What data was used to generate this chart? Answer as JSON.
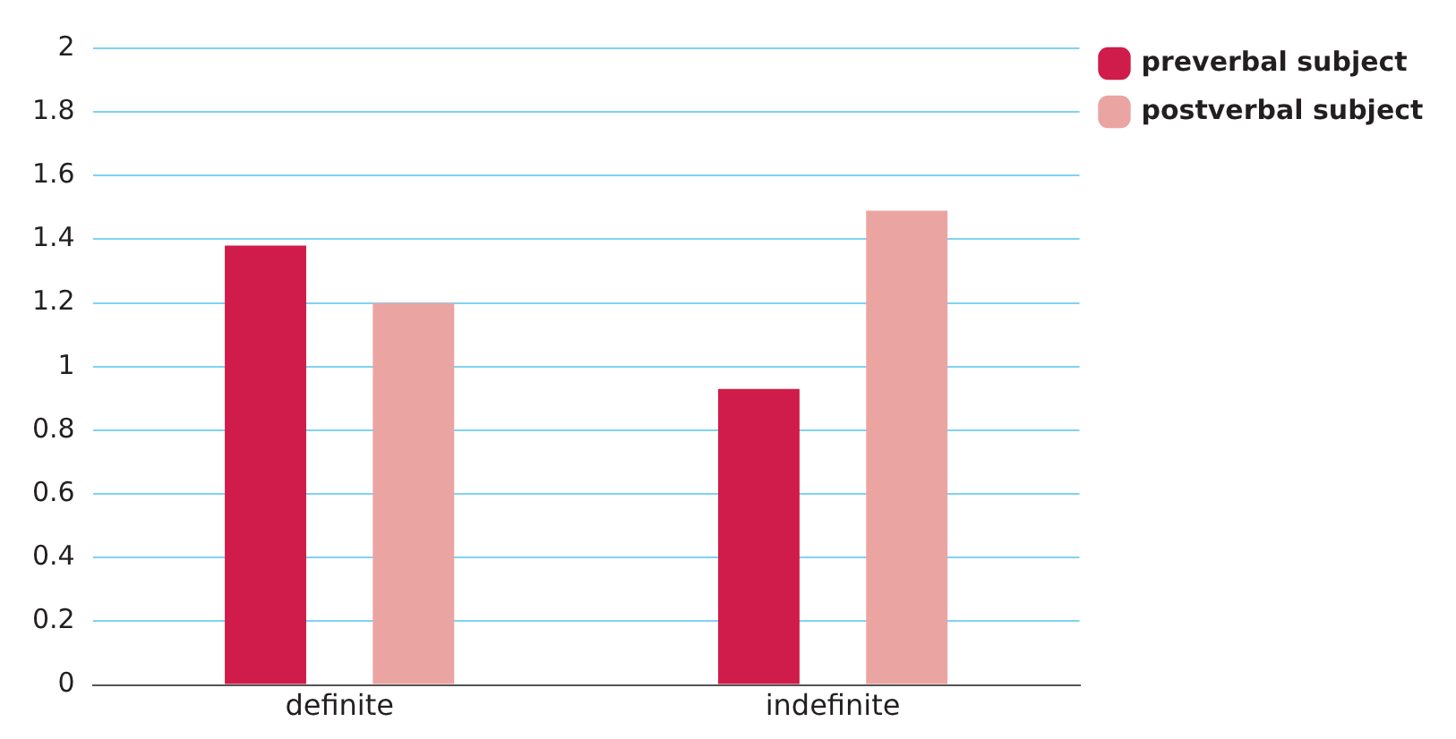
{
  "chart_data": {
    "type": "bar",
    "categories": [
      "definite",
      "indefinite"
    ],
    "series": [
      {
        "name": "preverbal subject",
        "color": "#d01c4a",
        "values": [
          1.38,
          0.93
        ]
      },
      {
        "name": "postverbal subject",
        "color": "#eaa5a2",
        "values": [
          1.2,
          1.49
        ]
      }
    ],
    "ylim": [
      0,
      2
    ],
    "yticks": [
      0,
      0.2,
      0.4,
      0.6,
      0.8,
      1,
      1.2,
      1.4,
      1.6,
      1.8,
      2
    ],
    "grid": "y",
    "legend": "top right"
  }
}
